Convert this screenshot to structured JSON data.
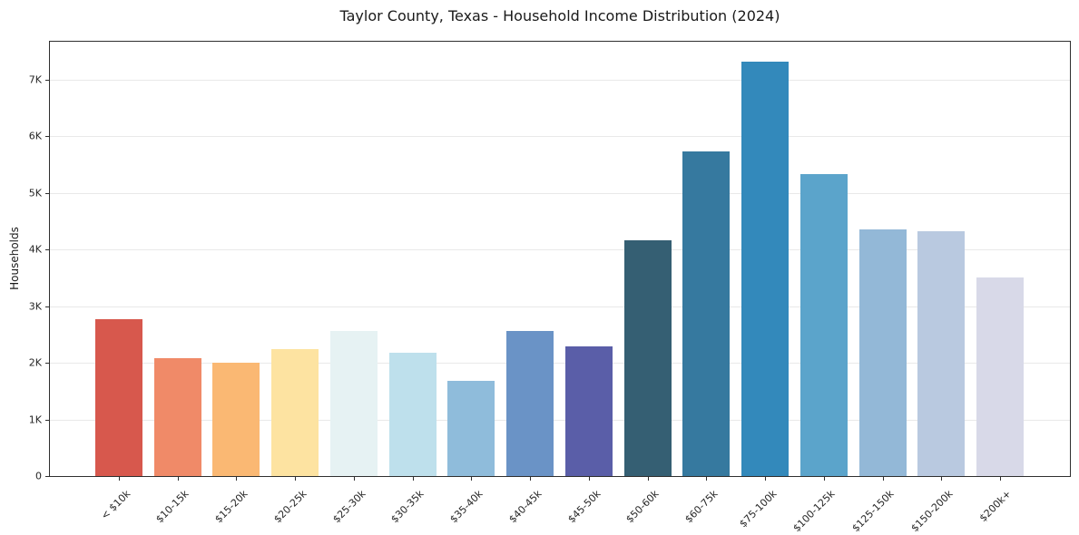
{
  "chart_data": {
    "type": "bar",
    "title": "Taylor County, Texas - Household Income Distribution (2024)",
    "xlabel": "",
    "ylabel": "Households",
    "categories": [
      "< $10k",
      "$10-15k",
      "$15-20k",
      "$20-25k",
      "$25-30k",
      "$30-35k",
      "$35-40k",
      "$40-45k",
      "$45-50k",
      "$50-60k",
      "$60-75k",
      "$75-100k",
      "$100-125k",
      "$125-150k",
      "$150-200k",
      "$200k+"
    ],
    "values": [
      2770,
      2080,
      2000,
      2240,
      2560,
      2170,
      1680,
      2570,
      2290,
      4160,
      5740,
      7320,
      5340,
      4360,
      4330,
      3500
    ],
    "bar_colors": [
      "#d7584d",
      "#f08a68",
      "#fab873",
      "#fde3a1",
      "#e6f2f3",
      "#bee0ec",
      "#8fbcdb",
      "#6a93c6",
      "#5a5ea8",
      "#355f73",
      "#36799f",
      "#3389bb",
      "#5ba4cb",
      "#93b8d7",
      "#b9c9e0",
      "#d8d9e8"
    ],
    "ylim": [
      0,
      7670
    ],
    "yticks": [
      {
        "value": 0,
        "label": "0"
      },
      {
        "value": 1000,
        "label": "1K"
      },
      {
        "value": 2000,
        "label": "2K"
      },
      {
        "value": 3000,
        "label": "3K"
      },
      {
        "value": 4000,
        "label": "4K"
      },
      {
        "value": 5000,
        "label": "5K"
      },
      {
        "value": 6000,
        "label": "6K"
      },
      {
        "value": 7000,
        "label": "7K"
      }
    ],
    "grid": "horizontal",
    "legend": "none",
    "colors": {
      "background": "#ffffff",
      "spine": "#2f2f2f",
      "gridline": "#e9e9e9",
      "text": "#262626"
    }
  }
}
